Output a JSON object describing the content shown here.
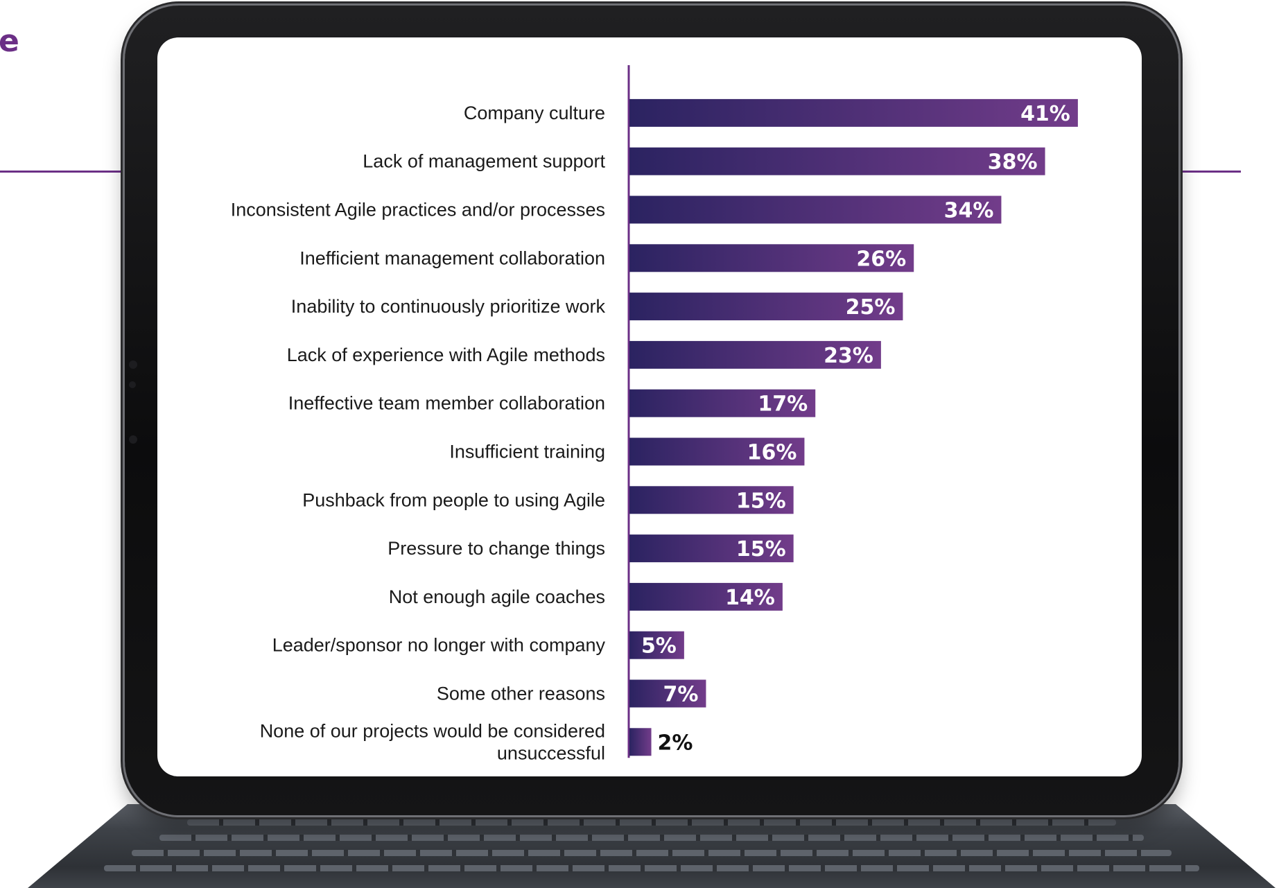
{
  "page": {
    "corner_text": "e",
    "accent_color": "#6b2f86"
  },
  "chart_data": {
    "type": "bar",
    "orientation": "horizontal",
    "title": "",
    "xlabel": "",
    "ylabel": "",
    "categories": [
      "Company culture",
      "Lack of management support",
      "Inconsistent Agile practices and/or processes",
      "Inefficient management collaboration",
      "Inability to continuously prioritize work",
      "Lack of experience with Agile methods",
      "Ineffective team member collaboration",
      "Insufficient training",
      "Pushback from people to using Agile",
      "Pressure to change things",
      "Not enough agile coaches",
      "Leader/sponsor no longer with company",
      "Some other reasons",
      "None of our projects would be considered unsuccessful"
    ],
    "values": [
      41,
      38,
      34,
      26,
      25,
      23,
      17,
      16,
      15,
      15,
      14,
      5,
      7,
      2
    ],
    "labels": [
      "41%",
      "38%",
      "34%",
      "26%",
      "25%",
      "23%",
      "17%",
      "16%",
      "15%",
      "15%",
      "14%",
      "5%",
      "7%",
      "2%"
    ],
    "xlim": [
      0,
      45
    ],
    "grid": false,
    "legend": "none",
    "colors": {
      "bar_start": "#2b2361",
      "bar_end": "#723c8a",
      "axis": "#6b2f86",
      "label": "#1a1a1a"
    }
  }
}
